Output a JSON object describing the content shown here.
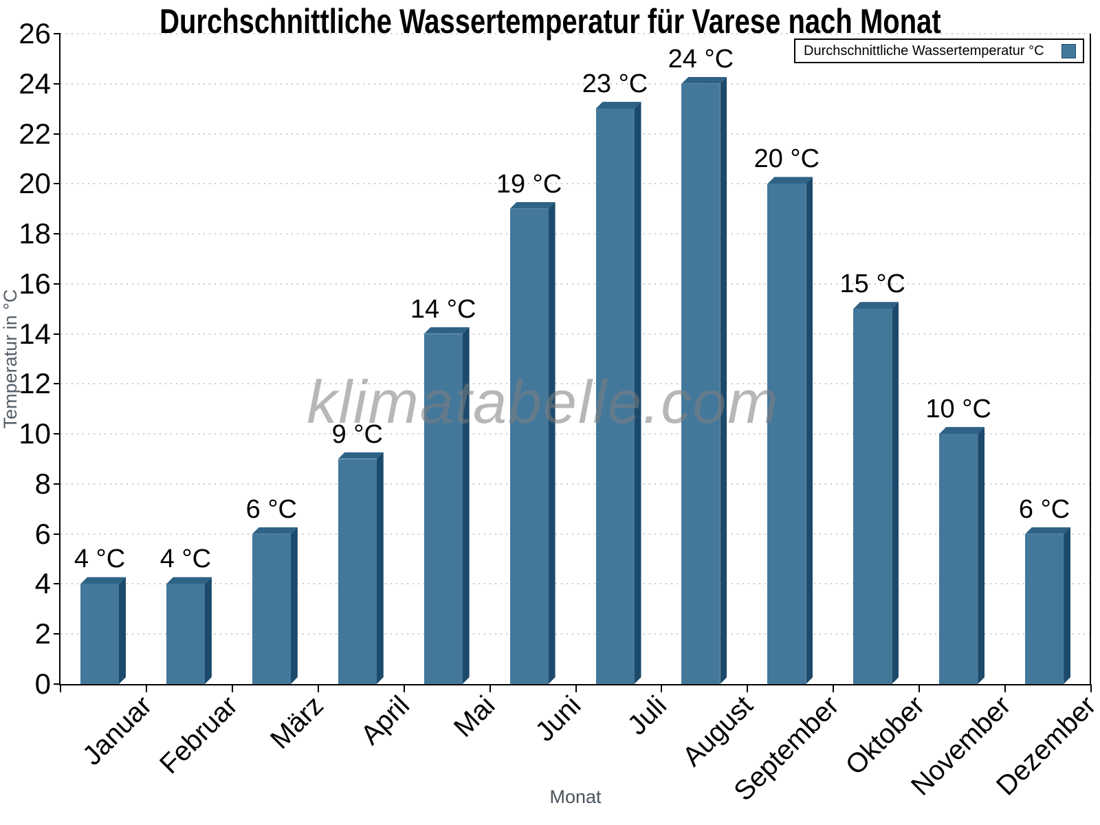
{
  "chart": {
    "title": "Durchschnittliche Wassertemperatur für Varese nach Monat",
    "x_axis_title": "Monat",
    "y_axis_title": "Temperatur in °C",
    "watermark": "klimatabelle.com",
    "legend": {
      "label": "Durchschnittliche Wassertemperatur °C"
    }
  },
  "chart_data": {
    "type": "bar",
    "title": "Durchschnittliche Wassertemperatur für Varese nach Monat",
    "categories": [
      "Januar",
      "Februar",
      "März",
      "April",
      "Mai",
      "Juni",
      "Juli",
      "August",
      "September",
      "Oktober",
      "November",
      "Dezember"
    ],
    "series": [
      {
        "name": "Durchschnittliche Wassertemperatur °C",
        "values": [
          4,
          4,
          6,
          9,
          14,
          19,
          23,
          24,
          20,
          15,
          10,
          6
        ]
      }
    ],
    "data_label_suffix": " °C",
    "xlabel": "Monat",
    "ylabel": "Temperatur in °C",
    "ylim": [
      0,
      26
    ],
    "ytick_step": 2,
    "grid": "horizontal-dotted",
    "legend_position": "top-right",
    "bar_style": "3d"
  },
  "colors": {
    "bar_front": "#44789B",
    "bar_top": "#2F6386",
    "bar_side": "#1C4A6B",
    "axis": "#000000",
    "grid": "#C9C9C9",
    "axis_title": "#545E68",
    "watermark": "#7E7E7E"
  }
}
